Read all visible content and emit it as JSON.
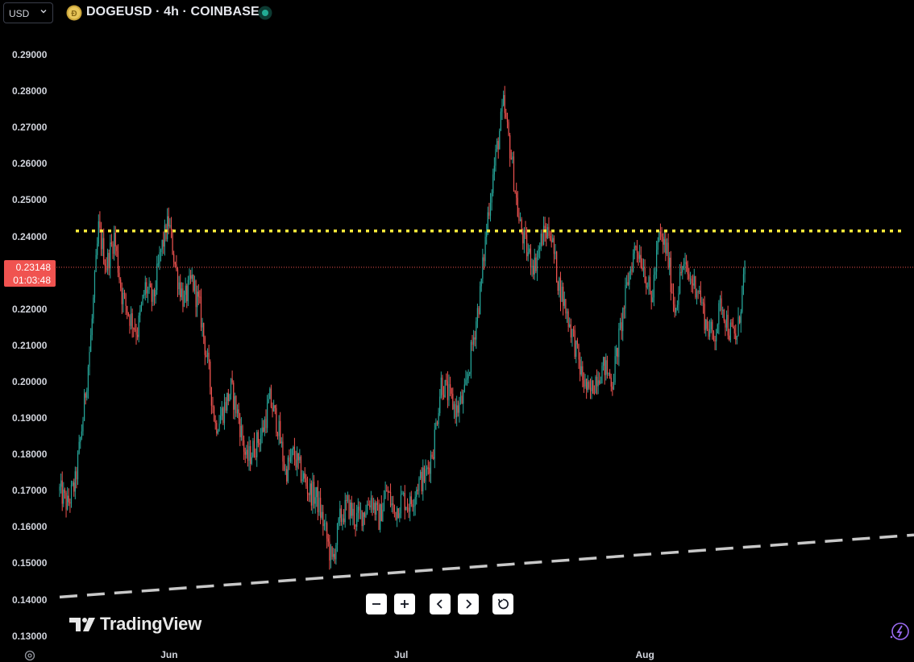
{
  "header": {
    "currency": "USD",
    "symbol_title": "DOGEUSD · 4h · COINBASE"
  },
  "price_badge": {
    "price": "0.23148",
    "countdown": "01:03:48",
    "color": "#f05350"
  },
  "controls": {
    "zoom_out_icon": "minus-icon",
    "zoom_in_icon": "plus-icon",
    "scroll_left_icon": "chevron-left-icon",
    "scroll_right_icon": "chevron-right-icon",
    "reset_icon": "reset-icon"
  },
  "branding": {
    "logo_text": "TradingView"
  },
  "colors": {
    "up": "#26a69a",
    "down": "#ef5350",
    "horizontal_line": "#ffeb3b",
    "trend_line": "#c8c8c8",
    "background": "#000000"
  },
  "chart_data": {
    "type": "candlestick",
    "symbol": "DOGEUSD",
    "interval": "4h",
    "exchange": "COINBASE",
    "y_tick_labels": [
      "0.29000",
      "0.28000",
      "0.27000",
      "0.26000",
      "0.25000",
      "0.24000",
      "0.23000",
      "0.22000",
      "0.21000",
      "0.20000",
      "0.19000",
      "0.18000",
      "0.17000",
      "0.16000",
      "0.15000",
      "0.14000",
      "0.13000"
    ],
    "x_tick_labels": [
      "Jun",
      "Jul",
      "Aug"
    ],
    "ylim": [
      0.13,
      0.29
    ],
    "current_price": 0.23148,
    "horizontal_level": 0.2415,
    "trend_line": {
      "start": {
        "date": "2025-05-18",
        "value": 0.1407
      },
      "end": {
        "date": "2025-08-27",
        "value": 0.1578
      }
    },
    "price_path": [
      [
        "2025-05-18",
        0.17
      ],
      [
        "2025-05-19",
        0.166
      ],
      [
        "2025-05-20",
        0.172
      ],
      [
        "2025-05-21",
        0.19
      ],
      [
        "2025-05-22",
        0.212
      ],
      [
        "2025-05-23",
        0.242
      ],
      [
        "2025-05-24",
        0.232
      ],
      [
        "2025-05-25",
        0.24
      ],
      [
        "2025-05-26",
        0.224
      ],
      [
        "2025-05-27",
        0.218
      ],
      [
        "2025-05-28",
        0.214
      ],
      [
        "2025-05-29",
        0.226
      ],
      [
        "2025-05-30",
        0.222
      ],
      [
        "2025-05-31",
        0.236
      ],
      [
        "2025-06-01",
        0.244
      ],
      [
        "2025-06-02",
        0.23
      ],
      [
        "2025-06-03",
        0.222
      ],
      [
        "2025-06-04",
        0.228
      ],
      [
        "2025-06-05",
        0.22
      ],
      [
        "2025-06-06",
        0.205
      ],
      [
        "2025-06-07",
        0.188
      ],
      [
        "2025-06-08",
        0.192
      ],
      [
        "2025-06-09",
        0.198
      ],
      [
        "2025-06-10",
        0.19
      ],
      [
        "2025-06-11",
        0.178
      ],
      [
        "2025-06-12",
        0.182
      ],
      [
        "2025-06-13",
        0.186
      ],
      [
        "2025-06-14",
        0.195
      ],
      [
        "2025-06-15",
        0.188
      ],
      [
        "2025-06-16",
        0.175
      ],
      [
        "2025-06-17",
        0.18
      ],
      [
        "2025-06-18",
        0.175
      ],
      [
        "2025-06-19",
        0.17
      ],
      [
        "2025-06-20",
        0.168
      ],
      [
        "2025-06-21",
        0.16
      ],
      [
        "2025-06-22",
        0.15
      ],
      [
        "2025-06-23",
        0.162
      ],
      [
        "2025-06-24",
        0.166
      ],
      [
        "2025-06-25",
        0.162
      ],
      [
        "2025-06-26",
        0.164
      ],
      [
        "2025-06-27",
        0.168
      ],
      [
        "2025-06-28",
        0.162
      ],
      [
        "2025-06-29",
        0.17
      ],
      [
        "2025-06-30",
        0.164
      ],
      [
        "2025-07-01",
        0.168
      ],
      [
        "2025-07-02",
        0.166
      ],
      [
        "2025-07-03",
        0.172
      ],
      [
        "2025-07-04",
        0.174
      ],
      [
        "2025-07-05",
        0.182
      ],
      [
        "2025-07-06",
        0.2
      ],
      [
        "2025-07-07",
        0.196
      ],
      [
        "2025-07-08",
        0.192
      ],
      [
        "2025-07-09",
        0.196
      ],
      [
        "2025-07-10",
        0.21
      ],
      [
        "2025-07-11",
        0.224
      ],
      [
        "2025-07-12",
        0.246
      ],
      [
        "2025-07-13",
        0.262
      ],
      [
        "2025-07-14",
        0.276
      ],
      [
        "2025-07-15",
        0.262
      ],
      [
        "2025-07-16",
        0.244
      ],
      [
        "2025-07-17",
        0.236
      ],
      [
        "2025-07-18",
        0.232
      ],
      [
        "2025-07-19",
        0.24
      ],
      [
        "2025-07-20",
        0.242
      ],
      [
        "2025-07-21",
        0.228
      ],
      [
        "2025-07-22",
        0.22
      ],
      [
        "2025-07-23",
        0.212
      ],
      [
        "2025-07-24",
        0.202
      ],
      [
        "2025-07-25",
        0.196
      ],
      [
        "2025-07-26",
        0.202
      ],
      [
        "2025-07-27",
        0.204
      ],
      [
        "2025-07-28",
        0.2
      ],
      [
        "2025-07-29",
        0.214
      ],
      [
        "2025-07-30",
        0.228
      ],
      [
        "2025-07-31",
        0.238
      ],
      [
        "2025-08-01",
        0.232
      ],
      [
        "2025-08-02",
        0.222
      ],
      [
        "2025-08-03",
        0.24
      ],
      [
        "2025-08-04",
        0.236
      ],
      [
        "2025-08-05",
        0.22
      ],
      [
        "2025-08-06",
        0.232
      ],
      [
        "2025-08-07",
        0.228
      ],
      [
        "2025-08-08",
        0.226
      ],
      [
        "2025-08-09",
        0.216
      ],
      [
        "2025-08-10",
        0.212
      ],
      [
        "2025-08-11",
        0.222
      ],
      [
        "2025-08-12",
        0.214
      ],
      [
        "2025-08-13",
        0.212
      ],
      [
        "2025-08-14",
        0.23148
      ]
    ]
  }
}
